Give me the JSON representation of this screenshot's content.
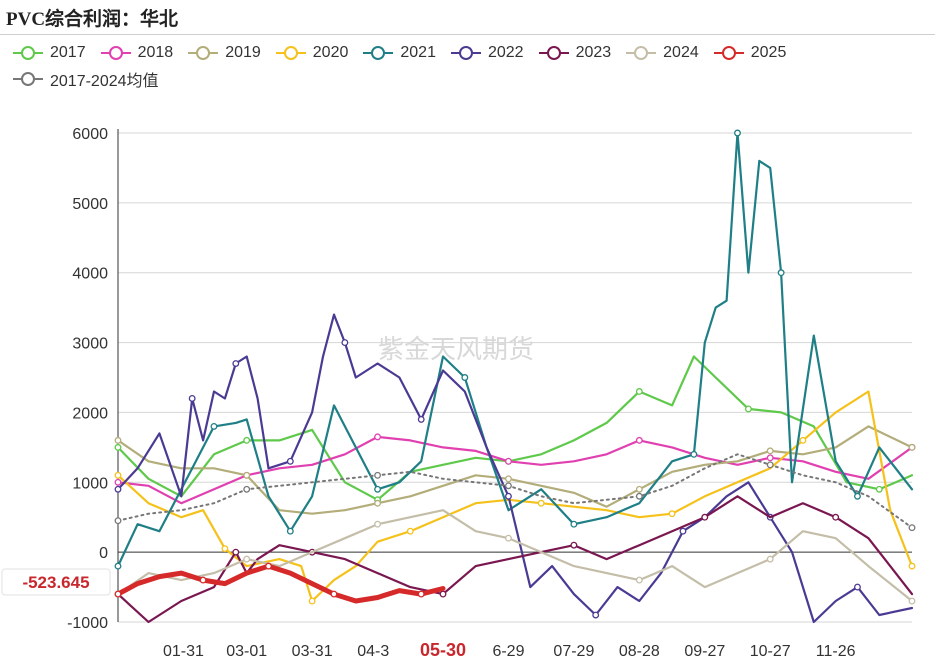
{
  "page_title": "PVC综合利润：华北",
  "watermark": "紫金天风期货",
  "current_value_label": "-523.645",
  "chart_data": {
    "type": "line",
    "title": "PVC综合利润：华北",
    "ylim": [
      -1000,
      6000
    ],
    "y_ticks": [
      -1000,
      0,
      1000,
      2000,
      3000,
      4000,
      5000,
      6000
    ],
    "x_tick_labels": [
      "01-31",
      "03-01",
      "03-31",
      "04-3",
      "05-30",
      "6-29",
      "07-29",
      "08-28",
      "09-27",
      "10-27",
      "11-26"
    ],
    "x_tick_positions": [
      31,
      60,
      90,
      118,
      150,
      180,
      210,
      240,
      270,
      300,
      330
    ],
    "x_highlight_label": "05-30",
    "x_range": [
      1,
      365
    ],
    "grid": "horizontal",
    "legend_position": "top",
    "series": [
      {
        "name": "2017",
        "color": "#5ec94a",
        "x": [
          1,
          15,
          30,
          45,
          60,
          75,
          90,
          105,
          120,
          135,
          150,
          165,
          180,
          195,
          210,
          225,
          240,
          255,
          265,
          275,
          290,
          305,
          320,
          335,
          350,
          365
        ],
        "values": [
          1500,
          1050,
          800,
          1400,
          1600,
          1600,
          1750,
          1000,
          750,
          1150,
          1250,
          1350,
          1300,
          1400,
          1600,
          1850,
          2300,
          2100,
          2800,
          2500,
          2050,
          2000,
          1800,
          1000,
          900,
          1100
        ]
      },
      {
        "name": "2018",
        "color": "#e040b0",
        "x": [
          1,
          15,
          30,
          45,
          60,
          75,
          90,
          105,
          120,
          135,
          150,
          165,
          180,
          195,
          210,
          225,
          240,
          255,
          270,
          285,
          300,
          315,
          330,
          345,
          365
        ],
        "values": [
          1000,
          950,
          700,
          900,
          1100,
          1200,
          1250,
          1400,
          1650,
          1600,
          1500,
          1450,
          1300,
          1250,
          1300,
          1400,
          1600,
          1500,
          1350,
          1250,
          1350,
          1300,
          1150,
          1050,
          1500
        ]
      },
      {
        "name": "2019",
        "color": "#b3ad7a",
        "x": [
          1,
          15,
          30,
          45,
          60,
          75,
          90,
          105,
          120,
          135,
          150,
          165,
          180,
          195,
          210,
          225,
          240,
          255,
          270,
          285,
          300,
          315,
          330,
          345,
          365
        ],
        "values": [
          1600,
          1300,
          1200,
          1200,
          1100,
          600,
          550,
          600,
          700,
          800,
          950,
          1100,
          1050,
          950,
          850,
          650,
          900,
          1150,
          1250,
          1300,
          1450,
          1400,
          1500,
          1800,
          1500
        ]
      },
      {
        "name": "2020",
        "color": "#f5c11b",
        "x": [
          1,
          15,
          30,
          40,
          50,
          60,
          75,
          85,
          90,
          100,
          110,
          120,
          135,
          150,
          165,
          180,
          195,
          210,
          225,
          240,
          255,
          270,
          285,
          300,
          315,
          330,
          345,
          355,
          365
        ],
        "values": [
          1100,
          700,
          500,
          600,
          50,
          -200,
          -100,
          -200,
          -700,
          -400,
          -200,
          150,
          300,
          500,
          700,
          750,
          700,
          650,
          600,
          500,
          550,
          800,
          1000,
          1200,
          1600,
          2000,
          2300,
          600,
          -200
        ]
      },
      {
        "name": "2021",
        "color": "#1f7f86",
        "x": [
          1,
          10,
          20,
          30,
          45,
          55,
          60,
          70,
          80,
          90,
          100,
          110,
          120,
          130,
          140,
          150,
          160,
          170,
          180,
          195,
          210,
          225,
          240,
          255,
          265,
          270,
          275,
          280,
          285,
          290,
          295,
          300,
          305,
          310,
          320,
          330,
          340,
          350,
          365
        ],
        "values": [
          -200,
          400,
          300,
          900,
          1800,
          1850,
          1900,
          800,
          300,
          800,
          2100,
          1500,
          900,
          1000,
          1300,
          2800,
          2500,
          1500,
          600,
          900,
          400,
          500,
          700,
          1300,
          1400,
          3000,
          3500,
          3600,
          6000,
          4000,
          5600,
          5500,
          4000,
          1000,
          3100,
          1300,
          800,
          1500,
          900
        ]
      },
      {
        "name": "2022",
        "color": "#4b3a93",
        "x": [
          1,
          10,
          20,
          30,
          35,
          40,
          45,
          50,
          55,
          60,
          65,
          70,
          80,
          90,
          95,
          100,
          105,
          110,
          120,
          130,
          140,
          150,
          160,
          170,
          180,
          190,
          200,
          210,
          220,
          230,
          240,
          250,
          260,
          270,
          280,
          290,
          300,
          310,
          320,
          330,
          340,
          350,
          365
        ],
        "values": [
          900,
          1200,
          1700,
          800,
          2200,
          1600,
          2300,
          2200,
          2700,
          2800,
          2200,
          1200,
          1300,
          2000,
          2800,
          3400,
          3000,
          2500,
          2700,
          2500,
          1900,
          2600,
          2300,
          1500,
          800,
          -500,
          -200,
          -600,
          -900,
          -500,
          -700,
          -300,
          300,
          500,
          800,
          1000,
          500,
          0,
          -1000,
          -700,
          -500,
          -900,
          -800
        ]
      },
      {
        "name": "2023",
        "color": "#7a1650",
        "x": [
          1,
          15,
          30,
          45,
          55,
          60,
          65,
          75,
          90,
          105,
          120,
          135,
          150,
          165,
          180,
          195,
          210,
          225,
          240,
          255,
          270,
          285,
          300,
          315,
          330,
          345,
          355,
          365
        ],
        "values": [
          -600,
          -1000,
          -700,
          -500,
          0,
          -300,
          -100,
          100,
          0,
          -100,
          -300,
          -500,
          -600,
          -200,
          -100,
          0,
          100,
          -100,
          100,
          300,
          500,
          800,
          500,
          700,
          500,
          200,
          -200,
          -600
        ]
      },
      {
        "name": "2024",
        "color": "#c4bea9",
        "x": [
          1,
          15,
          30,
          45,
          60,
          75,
          90,
          105,
          120,
          135,
          150,
          165,
          180,
          195,
          210,
          225,
          240,
          255,
          270,
          285,
          300,
          315,
          330,
          345,
          365
        ],
        "values": [
          -600,
          -300,
          -400,
          -300,
          -100,
          -200,
          0,
          200,
          400,
          500,
          600,
          300,
          200,
          0,
          -200,
          -300,
          -400,
          -200,
          -500,
          -300,
          -100,
          300,
          200,
          -200,
          -700
        ]
      },
      {
        "name": "2025",
        "color": "#d62a2a",
        "x": [
          1,
          10,
          20,
          30,
          40,
          50,
          60,
          65,
          70,
          75,
          80,
          90,
          100,
          110,
          120,
          130,
          140,
          150
        ],
        "values": [
          -600,
          -450,
          -350,
          -300,
          -400,
          -450,
          -300,
          -250,
          -200,
          -250,
          -300,
          -450,
          -600,
          -700,
          -650,
          -550,
          -600,
          -520
        ]
      },
      {
        "name": "2017-2024均值",
        "color": "#777777",
        "dashed": true,
        "x": [
          1,
          15,
          30,
          45,
          60,
          75,
          90,
          105,
          120,
          135,
          150,
          165,
          180,
          195,
          210,
          225,
          240,
          255,
          270,
          285,
          300,
          315,
          330,
          345,
          365
        ],
        "values": [
          450,
          550,
          600,
          700,
          900,
          950,
          1000,
          1050,
          1100,
          1150,
          1050,
          1000,
          950,
          800,
          700,
          750,
          800,
          950,
          1200,
          1400,
          1250,
          1100,
          1000,
          800,
          350
        ]
      }
    ]
  }
}
